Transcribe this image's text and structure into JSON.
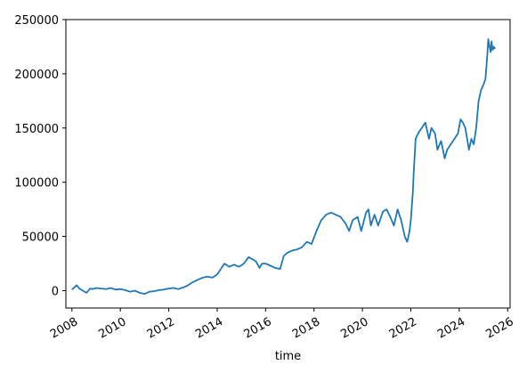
{
  "chart_data": {
    "type": "line",
    "title": "",
    "xlabel": "time",
    "ylabel": "",
    "grid": false,
    "legend": "none",
    "xlim": [
      2007.75,
      2026.1
    ],
    "ylim": [
      -16000,
      250000
    ],
    "x_ticks": [
      2008,
      2010,
      2012,
      2014,
      2016,
      2018,
      2020,
      2022,
      2024,
      2026
    ],
    "x_tick_labels": [
      "2008",
      "2010",
      "2012",
      "2014",
      "2016",
      "2018",
      "2020",
      "2022",
      "2024",
      "2026"
    ],
    "y_ticks": [
      0,
      50000,
      100000,
      150000,
      200000,
      250000
    ],
    "y_tick_labels": [
      "0",
      "50000",
      "100000",
      "150000",
      "200000",
      "250000"
    ],
    "series": [
      {
        "color": "#1f77b4",
        "x": [
          2008.0,
          2008.1,
          2008.2,
          2008.3,
          2008.45,
          2008.6,
          2008.75,
          2008.85,
          2009.0,
          2009.2,
          2009.4,
          2009.6,
          2009.8,
          2010.0,
          2010.2,
          2010.4,
          2010.6,
          2010.8,
          2011.0,
          2011.2,
          2011.4,
          2011.6,
          2011.8,
          2012.0,
          2012.2,
          2012.4,
          2012.6,
          2012.8,
          2013.0,
          2013.2,
          2013.4,
          2013.6,
          2013.8,
          2014.0,
          2014.15,
          2014.3,
          2014.5,
          2014.7,
          2014.9,
          2015.1,
          2015.3,
          2015.45,
          2015.6,
          2015.75,
          2015.85,
          2016.0,
          2016.2,
          2016.4,
          2016.6,
          2016.75,
          2016.9,
          2017.1,
          2017.3,
          2017.5,
          2017.7,
          2017.9,
          2018.1,
          2018.3,
          2018.5,
          2018.7,
          2018.9,
          2019.1,
          2019.3,
          2019.45,
          2019.6,
          2019.8,
          2019.95,
          2020.15,
          2020.25,
          2020.35,
          2020.5,
          2020.65,
          2020.85,
          2021.0,
          2021.15,
          2021.3,
          2021.45,
          2021.6,
          2021.75,
          2021.85,
          2021.95,
          2022.0,
          2022.08,
          2022.12,
          2022.2,
          2022.3,
          2022.45,
          2022.6,
          2022.75,
          2022.85,
          2023.0,
          2023.1,
          2023.25,
          2023.4,
          2023.5,
          2023.65,
          2023.8,
          2023.95,
          2024.05,
          2024.15,
          2024.25,
          2024.4,
          2024.5,
          2024.6,
          2024.7,
          2024.8,
          2024.9,
          2025.0,
          2025.08,
          2025.15,
          2025.2,
          2025.25,
          2025.3,
          2025.33,
          2025.38,
          2025.43,
          2025.48
        ],
        "y": [
          1000,
          3000,
          5000,
          2000,
          0,
          -2000,
          2000,
          1500,
          2500,
          2000,
          1500,
          2500,
          1000,
          1500,
          500,
          -1000,
          0,
          -2000,
          -3000,
          -1000,
          -500,
          500,
          1000,
          2000,
          2500,
          1500,
          3000,
          5000,
          8000,
          10000,
          12000,
          13000,
          12000,
          15000,
          20000,
          25000,
          22000,
          24000,
          22000,
          25000,
          31000,
          29000,
          27000,
          21000,
          25000,
          25000,
          23000,
          21000,
          20000,
          32000,
          35000,
          37000,
          38000,
          40000,
          45000,
          43000,
          55000,
          65000,
          70000,
          72000,
          70000,
          68000,
          62000,
          55000,
          65000,
          68000,
          55000,
          72000,
          75000,
          60000,
          70000,
          60000,
          73000,
          75000,
          68000,
          60000,
          75000,
          65000,
          50000,
          45000,
          55000,
          65000,
          90000,
          110000,
          140000,
          145000,
          150000,
          155000,
          140000,
          150000,
          145000,
          130000,
          138000,
          122000,
          130000,
          135000,
          140000,
          145000,
          158000,
          155000,
          150000,
          130000,
          140000,
          135000,
          150000,
          175000,
          185000,
          190000,
          195000,
          215000,
          232000,
          225000,
          220000,
          230000,
          222000,
          225000,
          223000
        ]
      }
    ]
  }
}
